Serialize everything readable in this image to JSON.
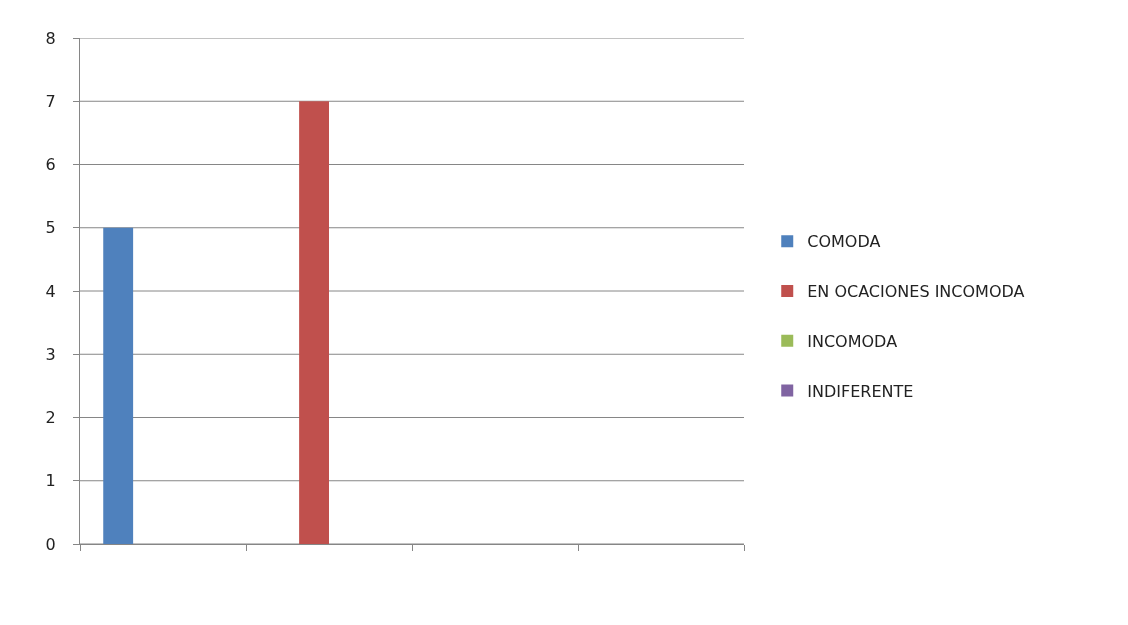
{
  "chart_data": {
    "type": "bar",
    "categories": [
      null,
      null,
      null,
      null
    ],
    "series": [
      {
        "name": "COMODA",
        "color": "#4f81bd",
        "values": [
          5,
          null,
          null,
          null
        ]
      },
      {
        "name": "EN OCACIONES INCOMODA",
        "color": "#c0504d",
        "values": [
          null,
          7,
          null,
          null
        ]
      },
      {
        "name": "INCOMODA",
        "color": "#9bbb59",
        "values": [
          null,
          null,
          0,
          null
        ]
      },
      {
        "name": "INDIFERENTE",
        "color": "#8064a2",
        "values": [
          null,
          null,
          null,
          0
        ]
      }
    ],
    "ylim": [
      0,
      8
    ],
    "yticks": [
      0,
      1,
      2,
      3,
      4,
      5,
      6,
      7,
      8
    ],
    "grid": "y",
    "legend": "right",
    "tick_labels": "y"
  }
}
